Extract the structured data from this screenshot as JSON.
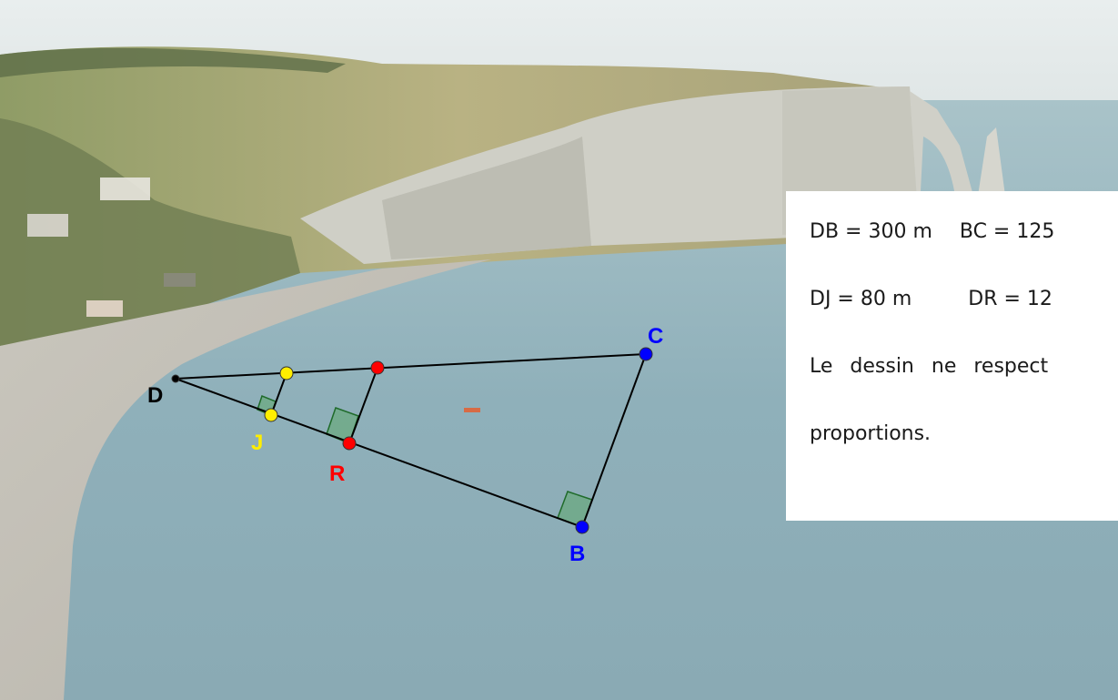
{
  "points": {
    "D": {
      "label": "D",
      "color": "#000000"
    },
    "J": {
      "label": "J",
      "color": "#ffee00"
    },
    "R": {
      "label": "R",
      "color": "#ff0000"
    },
    "B": {
      "label": "B",
      "color": "#0000ff"
    },
    "C": {
      "label": "C",
      "color": "#0000ff"
    }
  },
  "info": {
    "db": "DB = 300 m",
    "bc": "BC = 125",
    "dj": "DJ = 80 m",
    "dr": "DR = 12",
    "note_line1": "Le dessin ne respect",
    "note_line2": "proportions."
  },
  "colors": {
    "segment": "#000000",
    "right_angle_fill": "#5fa86b",
    "right_angle_stroke": "#1f6b2a"
  }
}
